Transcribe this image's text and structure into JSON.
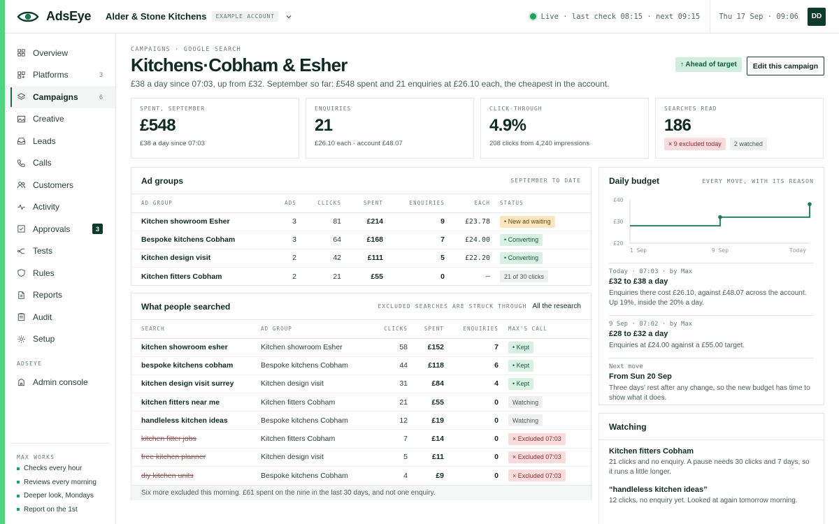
{
  "brand": {
    "name": "AdsEye"
  },
  "account": {
    "name": "Alder & Stone Kitchens",
    "tag": "EXAMPLE ACCOUNT"
  },
  "status": {
    "live": "Live · last check 08:15 · next 09:15",
    "clock": "Thu 17 Sep · 09:06",
    "avatar": "DD"
  },
  "sidebar": {
    "items": [
      {
        "label": "Overview",
        "icon": "grid-icon"
      },
      {
        "label": "Platforms",
        "icon": "platforms-icon",
        "count": "3"
      },
      {
        "label": "Campaigns",
        "icon": "layers-icon",
        "count": "6",
        "active": true
      },
      {
        "label": "Creative",
        "icon": "image-icon"
      },
      {
        "label": "Leads",
        "icon": "inbox-icon"
      },
      {
        "label": "Calls",
        "icon": "phone-icon"
      },
      {
        "label": "Customers",
        "icon": "users-icon"
      },
      {
        "label": "Activity",
        "icon": "activity-icon"
      },
      {
        "label": "Approvals",
        "icon": "check-square-icon",
        "badge": "3"
      },
      {
        "label": "Tests",
        "icon": "split-icon"
      },
      {
        "label": "Rules",
        "icon": "shield-icon"
      },
      {
        "label": "Reports",
        "icon": "file-icon"
      },
      {
        "label": "Audit",
        "icon": "clipboard-icon"
      },
      {
        "label": "Setup",
        "icon": "gear-icon"
      }
    ],
    "section": "ADSEYE",
    "admin": {
      "label": "Admin console",
      "icon": "building-icon"
    },
    "works_title": "MAX WORKS",
    "works": [
      "Checks every hour",
      "Reviews every morning",
      "Deeper look, Mondays",
      "Report on the 1st"
    ]
  },
  "page": {
    "crumb": "CAMPAIGNS · GOOGLE SEARCH",
    "title": "Kitchens·Cobham & Esher",
    "subtitle": "£38 a day since 07:03, up from £32. September so far: £548 spent and 21 enquiries at £26.10 each, the cheapest in the account.",
    "ahead": "↑ Ahead of target",
    "edit": "Edit this campaign"
  },
  "stats": [
    {
      "label": "SPENT, SEPTEMBER",
      "value": "£548",
      "note": "£38 a day since 07:03"
    },
    {
      "label": "ENQUIRIES",
      "value": "21",
      "note": "£26.10 each · account £48.07"
    },
    {
      "label": "CLICK-THROUGH",
      "value": "4.9%",
      "note": "208 clicks from 4,240 impressions"
    },
    {
      "label": "SEARCHES READ",
      "value": "186",
      "chip_red": "× 9 excluded today",
      "chip_grey": "2 watched"
    }
  ],
  "ad_groups": {
    "title": "Ad groups",
    "aside": "SEPTEMBER TO DATE",
    "columns": [
      "AD GROUP",
      "ADS",
      "CLICKS",
      "SPENT",
      "ENQUIRIES",
      "EACH",
      "STATUS"
    ],
    "rows": [
      {
        "name": "Kitchen showroom Esher",
        "ads": "3",
        "clicks": "81",
        "spent": "£214",
        "enquiries": "9",
        "each": "£23.78",
        "status": "• New ad waiting",
        "tone": "amber"
      },
      {
        "name": "Bespoke kitchens Cobham",
        "ads": "3",
        "clicks": "64",
        "spent": "£168",
        "enquiries": "7",
        "each": "£24.00",
        "status": "• Converting",
        "tone": "green"
      },
      {
        "name": "Kitchen design visit",
        "ads": "2",
        "clicks": "42",
        "spent": "£111",
        "enquiries": "5",
        "each": "£22.20",
        "status": "• Converting",
        "tone": "green"
      },
      {
        "name": "Kitchen fitters Cobham",
        "ads": "2",
        "clicks": "21",
        "spent": "£55",
        "enquiries": "0",
        "each": "–",
        "status": "21 of 30 clicks",
        "tone": "grey"
      }
    ]
  },
  "searches": {
    "title": "What people searched",
    "aside": "EXCLUDED SEARCHES ARE STRUCK THROUGH",
    "link": "All the research",
    "columns": [
      "SEARCH",
      "AD GROUP",
      "CLICKS",
      "SPENT",
      "ENQUIRIES",
      "MAX'S CALL"
    ],
    "rows": [
      {
        "term": "kitchen showroom esher",
        "group": "Kitchen showroom Esher",
        "clicks": "58",
        "spent": "£152",
        "enquiries": "7",
        "call": "• Kept",
        "tone": "green",
        "struck": false
      },
      {
        "term": "bespoke kitchens cobham",
        "group": "Bespoke kitchens Cobham",
        "clicks": "44",
        "spent": "£118",
        "enquiries": "6",
        "call": "• Kept",
        "tone": "green",
        "struck": false
      },
      {
        "term": "kitchen design visit surrey",
        "group": "Kitchen design visit",
        "clicks": "31",
        "spent": "£84",
        "enquiries": "4",
        "call": "• Kept",
        "tone": "green",
        "struck": false
      },
      {
        "term": "kitchen fitters near me",
        "group": "Kitchen fitters Cobham",
        "clicks": "21",
        "spent": "£55",
        "enquiries": "0",
        "call": "Watching",
        "tone": "grey",
        "struck": false
      },
      {
        "term": "handleless kitchen ideas",
        "group": "Bespoke kitchens Cobham",
        "clicks": "12",
        "spent": "£19",
        "enquiries": "0",
        "call": "Watching",
        "tone": "grey",
        "struck": false
      },
      {
        "term": "kitchen fitter jobs",
        "group": "Kitchen fitters Cobham",
        "clicks": "7",
        "spent": "£14",
        "enquiries": "0",
        "call": "× Excluded 07:03",
        "tone": "red",
        "struck": true
      },
      {
        "term": "free kitchen planner",
        "group": "Kitchen design visit",
        "clicks": "5",
        "spent": "£11",
        "enquiries": "0",
        "call": "× Excluded 07:03",
        "tone": "red",
        "struck": true
      },
      {
        "term": "diy kitchen units",
        "group": "Bespoke kitchens Cobham",
        "clicks": "4",
        "spent": "£9",
        "enquiries": "0",
        "call": "× Excluded 07:03",
        "tone": "red",
        "struck": true
      }
    ],
    "footer": "Six more excluded this morning. £61 spent on the nine in the last 30 days, and not one enquiry."
  },
  "budget": {
    "title": "Daily budget",
    "aside": "EVERY MOVE, WITH ITS REASON",
    "moves": [
      {
        "meta": "Today · 07:03 · by Max",
        "title": "£32 to £38 a day",
        "text": "Enquiries there cost £26.10, against £48.07 across the account. Up 19%, inside the 20% a day."
      },
      {
        "meta": "9 Sep · 07:02 · by Max",
        "title": "£28 to £32 a day",
        "text": "Enquiries at £24.00 against a £55.00 target."
      },
      {
        "meta": "Next move",
        "title": "From Sun 20 Sep",
        "text": "Three days' rest after any change, so the new budget has time to show what it does."
      }
    ]
  },
  "chart_data": {
    "type": "line",
    "title": "",
    "x_ticks": [
      "1 Sep",
      "9 Sep",
      "Today"
    ],
    "y_ticks": [
      "£40",
      "£30",
      "£20"
    ],
    "ylim": [
      20,
      40
    ],
    "series": [
      {
        "points": [
          {
            "x": "1 Sep",
            "y": 28
          },
          {
            "x": "9 Sep",
            "y": 28
          },
          {
            "x": "9 Sep",
            "y": 32
          },
          {
            "x": "Today",
            "y": 32
          },
          {
            "x": "Today",
            "y": 38
          }
        ]
      }
    ],
    "markers": [
      {
        "x": "9 Sep",
        "y": 32
      },
      {
        "x": "Today",
        "y": 38
      }
    ],
    "color": "#1a7a4e"
  },
  "watching": {
    "title": "Watching",
    "items": [
      {
        "title": "Kitchen fitters Cobham",
        "text": "21 clicks and no enquiry. A pause needs 30 clicks and 7 days, so it runs a little longer."
      },
      {
        "title": "“handleless kitchen ideas”",
        "text": "12 clicks, no enquiry yet. Looked at again tomorrow morning."
      }
    ]
  }
}
